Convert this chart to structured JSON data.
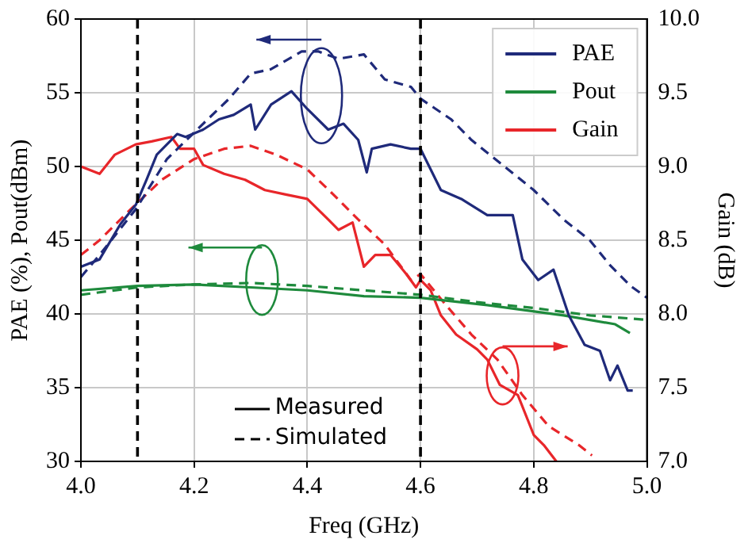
{
  "chart_data": {
    "type": "line",
    "xlabel": "Freq (GHz)",
    "ylabel": "PAE (%), Pout(dBm)",
    "y2label": "Gain (dB)",
    "xlim": [
      4.0,
      5.0
    ],
    "xticks": [
      {
        "value": 4,
        "label": "4.0"
      },
      4.2,
      4.4,
      4.6,
      4.8,
      {
        "value": 5,
        "label": "5.0"
      }
    ],
    "ylim": [
      30,
      60
    ],
    "yticks": [
      30,
      35,
      40,
      45,
      50,
      55,
      60
    ],
    "y2lim": [
      7,
      10
    ],
    "y2ticks": [
      {
        "value": 7,
        "label": "7.0"
      },
      7.5,
      {
        "value": 8,
        "label": "8.0"
      },
      8.5,
      {
        "value": 9,
        "label": "9.0"
      },
      9.5,
      {
        "value": 10,
        "label": "10.0"
      }
    ],
    "grid": true,
    "legend": "top right",
    "marker": "none",
    "series": [
      {
        "name": "PAE",
        "color": "#1f2a7a",
        "line_style": "solid",
        "x": [
          4.0,
          4.033,
          4.07,
          4.097,
          4.116,
          4.134,
          4.17,
          4.185,
          4.216,
          4.244,
          4.27,
          4.3,
          4.308,
          4.336,
          4.372,
          4.4,
          4.437,
          4.464,
          4.49,
          4.505,
          4.514,
          4.547,
          4.583,
          4.6,
          4.636,
          4.672,
          4.718,
          4.763,
          4.78,
          4.808,
          4.835,
          4.862,
          4.89,
          4.917,
          4.935,
          4.948,
          4.966,
          4.975
        ],
        "values": [
          43.2,
          43.7,
          46.1,
          47.4,
          49.1,
          50.8,
          52.2,
          52.0,
          52.5,
          53.2,
          53.5,
          54.2,
          52.5,
          54.2,
          55.1,
          53.9,
          52.5,
          52.9,
          51.8,
          49.6,
          51.2,
          51.5,
          51.2,
          51.2,
          48.4,
          47.8,
          46.7,
          46.7,
          43.7,
          42.3,
          43.0,
          39.9,
          37.9,
          37.5,
          35.5,
          36.5,
          34.8,
          34.8
        ]
      },
      {
        "color": "#1f2a7a",
        "line_style": "dashed",
        "x": [
          4.0,
          4.033,
          4.097,
          4.152,
          4.216,
          4.262,
          4.3,
          4.336,
          4.39,
          4.42,
          4.455,
          4.5,
          4.537,
          4.583,
          4.6,
          4.654,
          4.69,
          4.745,
          4.8,
          4.853,
          4.899,
          4.935,
          4.971,
          5.0
        ],
        "values": [
          42.5,
          44.0,
          47.1,
          50.5,
          52.9,
          54.6,
          56.3,
          56.6,
          57.8,
          57.8,
          57.3,
          57.6,
          55.9,
          55.4,
          54.6,
          53.2,
          51.8,
          50.1,
          48.4,
          46.4,
          45.0,
          43.3,
          41.9,
          41.1
        ]
      },
      {
        "name": "Pout",
        "color": "#1e8a3c",
        "line_style": "solid",
        "x": [
          4.0,
          4.1,
          4.2,
          4.3,
          4.4,
          4.5,
          4.6,
          4.718,
          4.853,
          4.944,
          4.97
        ],
        "values": [
          41.6,
          41.9,
          42.0,
          41.8,
          41.6,
          41.2,
          41.1,
          40.6,
          39.9,
          39.3,
          38.7
        ]
      },
      {
        "color": "#1e8a3c",
        "line_style": "dashed",
        "x": [
          4.0,
          4.1,
          4.2,
          4.3,
          4.4,
          4.5,
          4.6,
          4.7,
          4.8,
          4.9,
          5.0
        ],
        "values": [
          41.3,
          41.8,
          42.0,
          42.1,
          41.9,
          41.6,
          41.3,
          40.8,
          40.4,
          39.9,
          39.6
        ]
      },
      {
        "name": "Gain",
        "color": "#e8262a",
        "line_style": "solid",
        "axis": "y2",
        "x": [
          4.0,
          4.033,
          4.06,
          4.097,
          4.125,
          4.16,
          4.175,
          4.2,
          4.216,
          4.253,
          4.29,
          4.325,
          4.362,
          4.4,
          4.437,
          4.455,
          4.48,
          4.5,
          4.52,
          4.547,
          4.575,
          4.592,
          4.6,
          4.618,
          4.636,
          4.663,
          4.7,
          4.718,
          4.74,
          4.772,
          4.8,
          4.818,
          4.84
        ],
        "values": [
          9.0,
          8.95,
          9.08,
          9.15,
          9.17,
          9.2,
          9.12,
          9.12,
          9.01,
          8.95,
          8.91,
          8.84,
          8.81,
          8.78,
          8.64,
          8.57,
          8.62,
          8.32,
          8.4,
          8.4,
          8.27,
          8.18,
          8.23,
          8.16,
          7.99,
          7.86,
          7.76,
          7.69,
          7.52,
          7.45,
          7.18,
          7.11,
          7.0
        ]
      },
      {
        "color": "#e8262a",
        "line_style": "dashed",
        "axis": "y2",
        "x": [
          4.0,
          4.033,
          4.088,
          4.143,
          4.2,
          4.253,
          4.3,
          4.345,
          4.4,
          4.446,
          4.49,
          4.537,
          4.583,
          4.6,
          4.645,
          4.69,
          4.736,
          4.78,
          4.826,
          4.88,
          4.903
        ],
        "values": [
          8.4,
          8.5,
          8.71,
          8.91,
          9.05,
          9.12,
          9.14,
          9.08,
          8.98,
          8.81,
          8.64,
          8.47,
          8.23,
          8.27,
          8.06,
          7.86,
          7.69,
          7.45,
          7.24,
          7.11,
          7.04
        ]
      }
    ],
    "ref_lines": [
      {
        "axis": "x",
        "value": 4.1,
        "color": "#000000",
        "line_style": "dashed"
      },
      {
        "axis": "x",
        "value": 4.6,
        "color": "#000000",
        "line_style": "dashed"
      }
    ],
    "annotations": [
      "Measured",
      "Simulated"
    ]
  }
}
